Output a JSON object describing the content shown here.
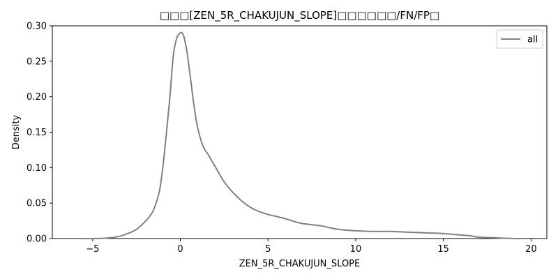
{
  "chart_data": {
    "type": "line",
    "title": "□□□[ZEN_5R_CHAKUJUN_SLOPE]□□□□□□/FN/FP□",
    "xlabel": "ZEN_5R_CHAKUJUN_SLOPE",
    "ylabel": "Density",
    "xlim": [
      -7.3,
      20.9
    ],
    "ylim": [
      0.0,
      0.3
    ],
    "x_ticks": [
      -5,
      0,
      5,
      10,
      15,
      20
    ],
    "x_tick_labels": [
      "−5",
      "0",
      "5",
      "10",
      "15",
      "20"
    ],
    "y_ticks": [
      0.0,
      0.05,
      0.1,
      0.15,
      0.2,
      0.25,
      0.3
    ],
    "y_tick_labels": [
      "0.00",
      "0.05",
      "0.10",
      "0.15",
      "0.20",
      "0.25",
      "0.30"
    ],
    "grid": false,
    "legend_position": "top-right",
    "series": [
      {
        "name": "all",
        "color": "#808080",
        "x": [
          -6.0,
          -5.0,
          -4.0,
          -3.5,
          -3.0,
          -2.5,
          -2.0,
          -1.7,
          -1.5,
          -1.2,
          -1.0,
          -0.8,
          -0.6,
          -0.4,
          -0.2,
          0.0,
          0.1,
          0.2,
          0.3,
          0.4,
          0.6,
          0.8,
          1.0,
          1.3,
          1.6,
          2.0,
          2.5,
          3.0,
          3.5,
          4.0,
          4.5,
          5.0,
          5.5,
          6.0,
          6.5,
          7.0,
          8.0,
          9.0,
          10.0,
          11.0,
          12.0,
          13.0,
          14.0,
          15.0,
          16.0,
          16.5,
          17.0,
          18.0,
          19.0,
          19.6
        ],
        "y": [
          0.0,
          0.0,
          0.001,
          0.003,
          0.007,
          0.013,
          0.024,
          0.033,
          0.042,
          0.066,
          0.1,
          0.147,
          0.198,
          0.258,
          0.283,
          0.29,
          0.29,
          0.285,
          0.274,
          0.26,
          0.222,
          0.184,
          0.155,
          0.13,
          0.118,
          0.101,
          0.08,
          0.065,
          0.053,
          0.044,
          0.038,
          0.034,
          0.031,
          0.028,
          0.024,
          0.021,
          0.018,
          0.013,
          0.011,
          0.01,
          0.01,
          0.009,
          0.008,
          0.007,
          0.005,
          0.004,
          0.002,
          0.001,
          0.0,
          0.0
        ]
      }
    ]
  }
}
